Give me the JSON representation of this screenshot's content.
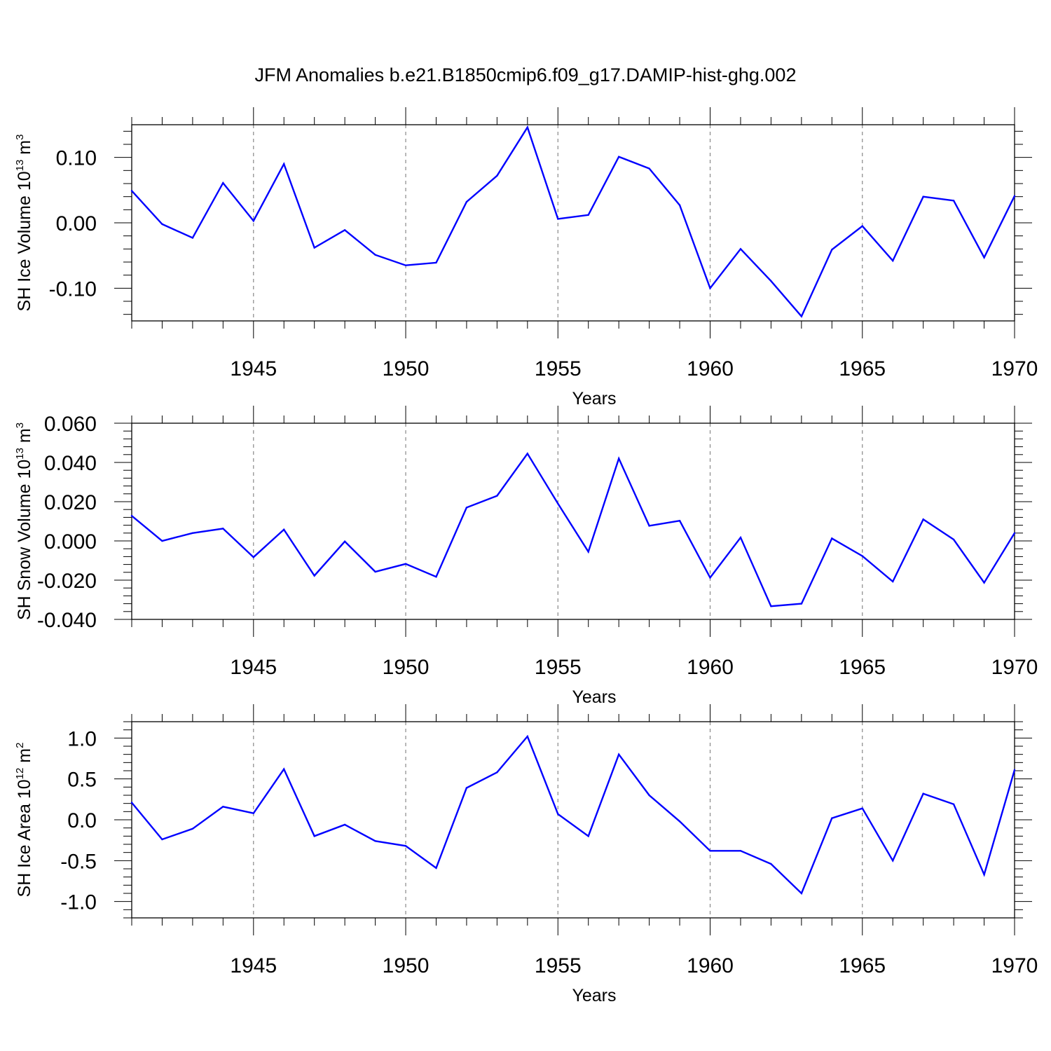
{
  "chart_data": [
    {
      "type": "line",
      "title": "JFM Anomalies b.e21.B1850cmip6.f09_g17.DAMIP-hist-ghg.002",
      "xlabel": "Years",
      "ylabel": {
        "text": "SH Ice Volume 10",
        "sup": "13",
        "unit": " m",
        "unit_sup": "3"
      },
      "xlim": [
        1941,
        1970
      ],
      "ylim": [
        -0.15,
        0.15
      ],
      "xticks": [
        "1945",
        "1950",
        "1955",
        "1960",
        "1965",
        "1970"
      ],
      "yticks": [
        {
          "value": 0.1,
          "label": "0.10"
        },
        {
          "value": 0.0,
          "label": "0.00"
        },
        {
          "value": -0.1,
          "label": "-0.10"
        }
      ],
      "grid": "vertical dashed at major x ticks",
      "color": "#0000ff",
      "x": [
        1941,
        1942,
        1943,
        1944,
        1945,
        1946,
        1947,
        1948,
        1949,
        1950,
        1951,
        1952,
        1953,
        1954,
        1955,
        1956,
        1957,
        1958,
        1959,
        1960,
        1961,
        1962,
        1963,
        1964,
        1965,
        1966,
        1967,
        1968,
        1969,
        1970
      ],
      "y": [
        0.049,
        -0.002,
        -0.023,
        0.061,
        0.003,
        0.09,
        -0.038,
        -0.011,
        -0.049,
        -0.065,
        -0.061,
        0.032,
        0.072,
        0.146,
        0.006,
        0.012,
        0.101,
        0.083,
        0.027,
        -0.1,
        -0.04,
        -0.089,
        -0.143,
        -0.041,
        -0.005,
        -0.058,
        0.04,
        0.034,
        -0.053,
        0.041
      ]
    },
    {
      "type": "line",
      "xlabel": "Years",
      "ylabel": {
        "text": "SH Snow Volume 10",
        "sup": "13",
        "unit": " m",
        "unit_sup": "3"
      },
      "xlim": [
        1941,
        1970
      ],
      "ylim": [
        -0.04,
        0.06
      ],
      "xticks": [
        "1945",
        "1950",
        "1955",
        "1960",
        "1965",
        "1970"
      ],
      "yticks": [
        {
          "value": 0.06,
          "label": "0.060"
        },
        {
          "value": 0.04,
          "label": "0.040"
        },
        {
          "value": 0.02,
          "label": "0.020"
        },
        {
          "value": 0.0,
          "label": "0.000"
        },
        {
          "value": -0.02,
          "label": "-0.020"
        },
        {
          "value": -0.04,
          "label": "-0.040"
        }
      ],
      "grid": "vertical dashed at major x ticks",
      "color": "#0000ff",
      "x": [
        1941,
        1942,
        1943,
        1944,
        1945,
        1946,
        1947,
        1948,
        1949,
        1950,
        1951,
        1952,
        1953,
        1954,
        1955,
        1956,
        1957,
        1958,
        1959,
        1960,
        1961,
        1962,
        1963,
        1964,
        1965,
        1966,
        1967,
        1968,
        1969,
        1970
      ],
      "y": [
        0.0128,
        0.0,
        0.004,
        0.0063,
        -0.0083,
        0.0058,
        -0.0177,
        -0.0003,
        -0.0157,
        -0.0117,
        -0.0183,
        0.017,
        0.023,
        0.0445,
        0.019,
        -0.0055,
        0.042,
        0.0077,
        0.0103,
        -0.0187,
        0.0017,
        -0.0333,
        -0.032,
        0.0013,
        -0.0077,
        -0.0207,
        0.011,
        0.0007,
        -0.0213,
        0.004
      ]
    },
    {
      "type": "line",
      "xlabel": "Years",
      "ylabel": {
        "text": "SH Ice Area 10",
        "sup": "12",
        "unit": " m",
        "unit_sup": "2"
      },
      "xlim": [
        1941,
        1970
      ],
      "ylim": [
        -1.2,
        1.2
      ],
      "xticks": [
        "1945",
        "1950",
        "1955",
        "1960",
        "1965",
        "1970"
      ],
      "yticks": [
        {
          "value": 1.0,
          "label": "1.0"
        },
        {
          "value": 0.5,
          "label": "0.5"
        },
        {
          "value": 0.0,
          "label": "0.0"
        },
        {
          "value": -0.5,
          "label": "-0.5"
        },
        {
          "value": -1.0,
          "label": "-1.0"
        }
      ],
      "grid": "vertical dashed at major x ticks",
      "color": "#0000ff",
      "x": [
        1941,
        1942,
        1943,
        1944,
        1945,
        1946,
        1947,
        1948,
        1949,
        1950,
        1951,
        1952,
        1953,
        1954,
        1955,
        1956,
        1957,
        1958,
        1959,
        1960,
        1961,
        1962,
        1963,
        1964,
        1965,
        1966,
        1967,
        1968,
        1969,
        1970
      ],
      "y": [
        0.21,
        -0.24,
        -0.11,
        0.16,
        0.08,
        0.62,
        -0.2,
        -0.06,
        -0.26,
        -0.32,
        -0.59,
        0.39,
        0.58,
        1.02,
        0.07,
        -0.2,
        0.8,
        0.3,
        -0.02,
        -0.38,
        -0.38,
        -0.54,
        -0.9,
        0.02,
        0.14,
        -0.5,
        0.32,
        0.19,
        -0.67,
        0.61
      ]
    }
  ]
}
